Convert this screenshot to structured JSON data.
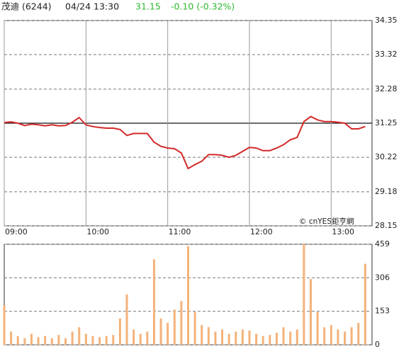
{
  "header": {
    "name": "茂迪 (6244)",
    "datetime": "04/24 13:30",
    "price": "31.15",
    "change": "-0.10 (-0.32%)"
  },
  "watermark": "© cnYES鉅亨網",
  "chart_data": [
    {
      "type": "line",
      "color": "#d42a2a",
      "x": [
        "09:00",
        "09:05",
        "09:10",
        "09:15",
        "09:20",
        "09:25",
        "09:30",
        "09:35",
        "09:40",
        "09:45",
        "09:50",
        "09:55",
        "10:00",
        "10:05",
        "10:10",
        "10:15",
        "10:20",
        "10:25",
        "10:30",
        "10:35",
        "10:40",
        "10:45",
        "10:50",
        "10:55",
        "11:00",
        "11:05",
        "11:10",
        "11:15",
        "11:20",
        "11:25",
        "11:30",
        "11:35",
        "11:40",
        "11:45",
        "11:50",
        "11:55",
        "12:00",
        "12:05",
        "12:10",
        "12:15",
        "12:20",
        "12:25",
        "12:30",
        "12:35",
        "12:40",
        "12:45",
        "12:50",
        "12:55",
        "13:00",
        "13:05",
        "13:10",
        "13:15",
        "13:20",
        "13:25"
      ],
      "values": [
        31.27,
        31.29,
        31.25,
        31.18,
        31.22,
        31.2,
        31.17,
        31.2,
        31.17,
        31.18,
        31.28,
        31.42,
        31.2,
        31.15,
        31.12,
        31.1,
        31.1,
        31.06,
        30.88,
        30.94,
        30.94,
        30.94,
        30.68,
        30.55,
        30.5,
        30.48,
        30.35,
        29.88,
        30.0,
        30.1,
        30.3,
        30.3,
        30.28,
        30.22,
        30.28,
        30.4,
        30.52,
        30.5,
        30.42,
        30.42,
        30.5,
        30.6,
        30.75,
        30.82,
        31.3,
        31.45,
        31.35,
        31.3,
        31.3,
        31.28,
        31.25,
        31.08,
        31.08,
        31.15
      ],
      "xlim": [
        "09:00",
        "13:30"
      ],
      "xticks": [
        "09:00",
        "10:00",
        "11:00",
        "12:00",
        "13:00"
      ],
      "ylim": [
        28.15,
        34.35
      ],
      "yticks": [
        28.15,
        29.18,
        30.22,
        31.25,
        32.28,
        33.32,
        34.35
      ],
      "reference_line": 31.25,
      "grid": true
    },
    {
      "type": "bar",
      "color": "#f4b27a",
      "x": [
        "09:00",
        "09:05",
        "09:10",
        "09:15",
        "09:20",
        "09:25",
        "09:30",
        "09:35",
        "09:40",
        "09:45",
        "09:50",
        "09:55",
        "10:00",
        "10:05",
        "10:10",
        "10:15",
        "10:20",
        "10:25",
        "10:30",
        "10:35",
        "10:40",
        "10:45",
        "10:50",
        "10:55",
        "11:00",
        "11:05",
        "11:10",
        "11:15",
        "11:20",
        "11:25",
        "11:30",
        "11:35",
        "11:40",
        "11:45",
        "11:50",
        "11:55",
        "12:00",
        "12:05",
        "12:10",
        "12:15",
        "12:20",
        "12:25",
        "12:30",
        "12:35",
        "12:40",
        "12:45",
        "12:50",
        "12:55",
        "13:00",
        "13:05",
        "13:10",
        "13:15",
        "13:20",
        "13:25"
      ],
      "values": [
        180,
        60,
        40,
        30,
        50,
        35,
        40,
        30,
        45,
        30,
        60,
        80,
        50,
        40,
        35,
        40,
        45,
        120,
        230,
        70,
        50,
        60,
        390,
        120,
        100,
        160,
        200,
        450,
        150,
        90,
        80,
        60,
        70,
        50,
        60,
        70,
        65,
        50,
        40,
        45,
        55,
        80,
        60,
        70,
        459,
        300,
        150,
        80,
        90,
        70,
        60,
        80,
        100,
        370
      ],
      "xlim": [
        "09:00",
        "13:30"
      ],
      "ylim": [
        0,
        459
      ],
      "yticks": [
        0,
        153,
        306,
        459
      ],
      "grid": true
    }
  ]
}
